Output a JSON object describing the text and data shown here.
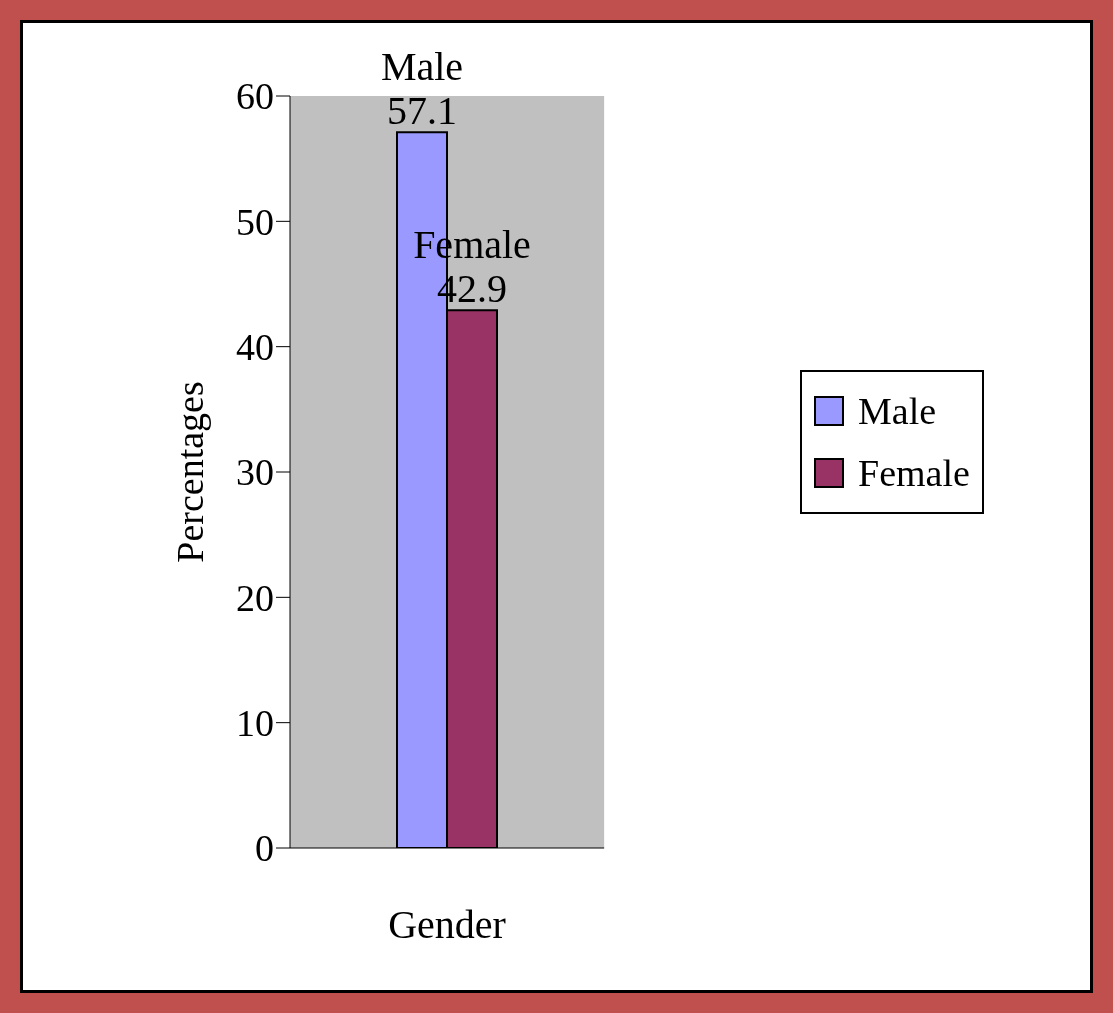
{
  "chart_data": {
    "type": "bar",
    "xlabel": "Gender",
    "ylabel": "Percentages",
    "categories": [
      null
    ],
    "series": [
      {
        "name": "Male",
        "color": "#9999ff",
        "values": [
          57.1
        ]
      },
      {
        "name": "Female",
        "color": "#993366",
        "values": [
          42.9
        ]
      }
    ],
    "ylim": [
      0,
      60
    ],
    "yticks": [
      0,
      10,
      20,
      30,
      40,
      50,
      60
    ],
    "legend": "right",
    "data_labels": true
  }
}
